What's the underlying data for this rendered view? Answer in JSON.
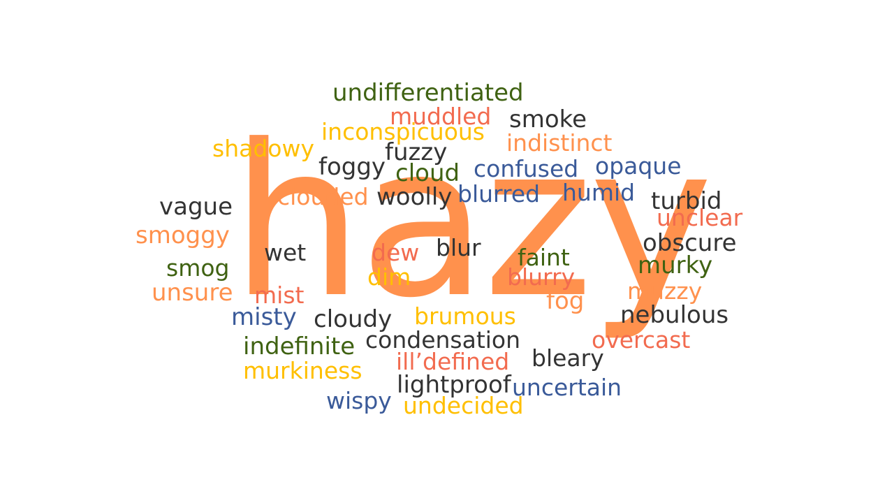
{
  "main_word": "hazy",
  "colors": {
    "orange": "#ff914d",
    "red": "#f26b4f",
    "yellow": "#ffbf00",
    "green": "#3f6212",
    "blue": "#3a5a99",
    "dark": "#333333"
  },
  "words": [
    {
      "text": "undifferentiated",
      "color": "green"
    },
    {
      "text": "muddled",
      "color": "red"
    },
    {
      "text": "smoke",
      "color": "dark"
    },
    {
      "text": "inconspicuous",
      "color": "yellow"
    },
    {
      "text": "indistinct",
      "color": "orange"
    },
    {
      "text": "shadowy",
      "color": "yellow"
    },
    {
      "text": "fuzzy",
      "color": "dark"
    },
    {
      "text": "foggy",
      "color": "dark"
    },
    {
      "text": "cloud",
      "color": "green"
    },
    {
      "text": "confused",
      "color": "blue"
    },
    {
      "text": "opaque",
      "color": "blue"
    },
    {
      "text": "humid",
      "color": "blue"
    },
    {
      "text": "clouded",
      "color": "orange"
    },
    {
      "text": "woolly",
      "color": "dark"
    },
    {
      "text": "blurred",
      "color": "blue"
    },
    {
      "text": "turbid",
      "color": "dark"
    },
    {
      "text": "vague",
      "color": "dark"
    },
    {
      "text": "unclear",
      "color": "red"
    },
    {
      "text": "smoggy",
      "color": "orange"
    },
    {
      "text": "obscure",
      "color": "dark"
    },
    {
      "text": "wet",
      "color": "dark"
    },
    {
      "text": "dew",
      "color": "red"
    },
    {
      "text": "blur",
      "color": "dark"
    },
    {
      "text": "faint",
      "color": "green"
    },
    {
      "text": "murky",
      "color": "green"
    },
    {
      "text": "smog",
      "color": "green"
    },
    {
      "text": "dim",
      "color": "yellow"
    },
    {
      "text": "blurry",
      "color": "red"
    },
    {
      "text": "muzzy",
      "color": "orange"
    },
    {
      "text": "unsure",
      "color": "orange"
    },
    {
      "text": "mist",
      "color": "red"
    },
    {
      "text": "fog",
      "color": "orange"
    },
    {
      "text": "misty",
      "color": "blue"
    },
    {
      "text": "cloudy",
      "color": "dark"
    },
    {
      "text": "brumous",
      "color": "yellow"
    },
    {
      "text": "nebulous",
      "color": "dark"
    },
    {
      "text": "indefinite",
      "color": "green"
    },
    {
      "text": "condensation",
      "color": "dark"
    },
    {
      "text": "overcast",
      "color": "red"
    },
    {
      "text": "ill’defined",
      "color": "red"
    },
    {
      "text": "bleary",
      "color": "dark"
    },
    {
      "text": "murkiness",
      "color": "yellow"
    },
    {
      "text": "lightproof",
      "color": "dark"
    },
    {
      "text": "uncertain",
      "color": "blue"
    },
    {
      "text": "wispy",
      "color": "blue"
    },
    {
      "text": "undecided",
      "color": "yellow"
    }
  ]
}
